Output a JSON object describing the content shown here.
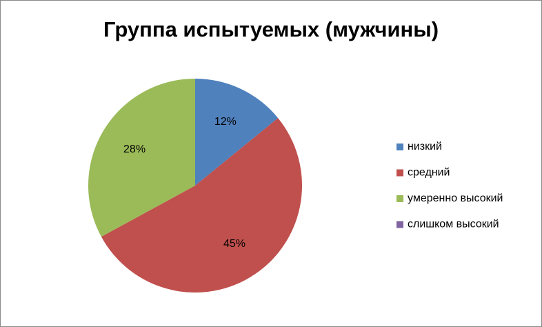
{
  "chart_data": {
    "type": "pie",
    "title": "Группа испытуемых (мужчины)",
    "categories": [
      "низкий",
      "средний",
      "умеренно высокий",
      "слишком высокий"
    ],
    "values": [
      12,
      45,
      28,
      0
    ],
    "value_labels": [
      "12%",
      "45%",
      "28%",
      null
    ],
    "colors": [
      "#4f81bd",
      "#c0504d",
      "#9bbb59",
      "#8064a2"
    ],
    "legend": "right"
  }
}
